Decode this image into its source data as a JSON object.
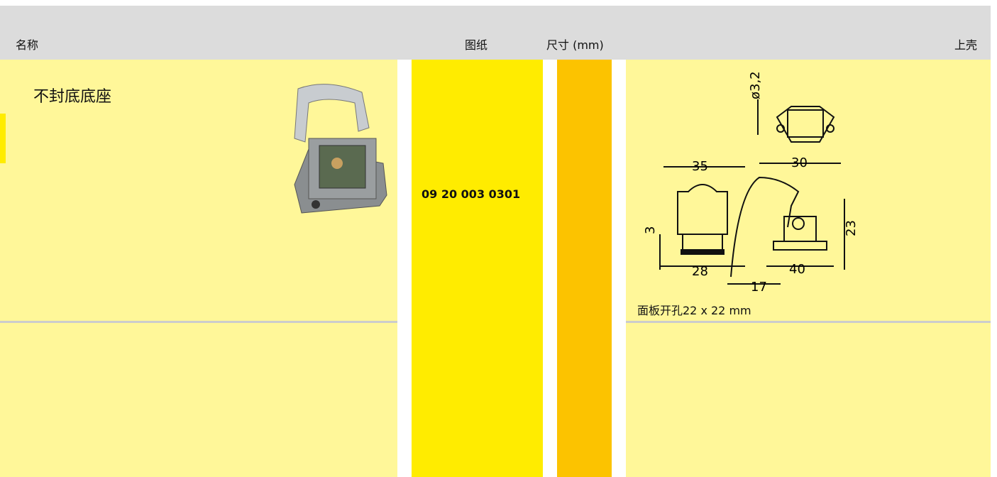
{
  "header": {
    "name": "名称",
    "drawing": "图纸",
    "dimensions": "尺寸 (mm)",
    "upper": "上壳"
  },
  "rows": [
    {
      "name": "不封底底座",
      "part_number": "09 20 003 0301",
      "note": "面板开孔22 x 22 mm",
      "dimension_labels": [
        "ø3,2",
        "35",
        "30",
        "3",
        "28",
        "17",
        "40",
        "23"
      ]
    }
  ]
}
